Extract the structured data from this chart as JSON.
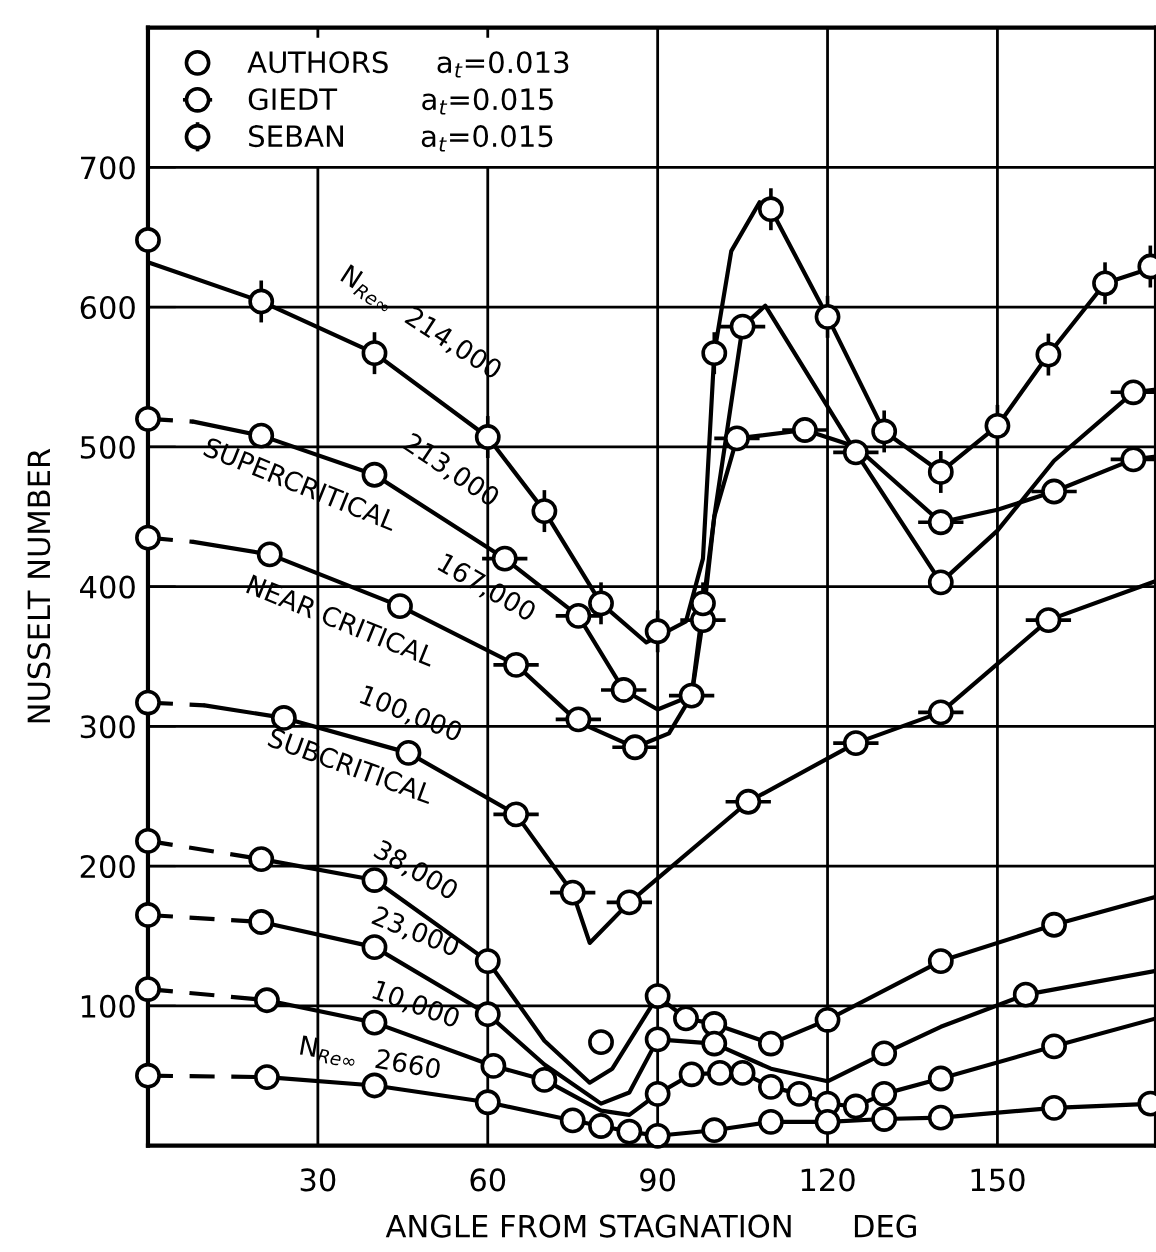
{
  "chart_data": {
    "type": "line",
    "xlabel": "ANGLE FROM STAGNATION      DEG",
    "ylabel": "NUSSELT NUMBER",
    "xlim": [
      0,
      178
    ],
    "ylim": [
      0,
      800
    ],
    "xticks": [
      30,
      60,
      90,
      120,
      150
    ],
    "yticks": [
      100,
      200,
      300,
      400,
      500,
      600,
      700
    ],
    "grid": true,
    "legend": "top left",
    "tick_labels": "xy",
    "series": [
      {
        "color": "#000000",
        "line_style": "solid",
        "x": [
          0,
          20,
          40,
          60,
          70,
          80,
          88,
          95,
          98,
          100,
          103,
          108,
          110,
          120,
          130,
          140,
          150,
          159,
          169,
          178
        ],
        "values": [
          632,
          604,
          567,
          507,
          454,
          388,
          360,
          375,
          420,
          567,
          640,
          675,
          670,
          593,
          511,
          482,
          515,
          566,
          617,
          629
        ]
      },
      {
        "color": "#000000",
        "line_style": "dashed",
        "x": [
          0,
          8
        ],
        "values": [
          520,
          518
        ]
      },
      {
        "color": "#000000",
        "line_style": "solid",
        "x": [
          8,
          20,
          40,
          63,
          76,
          84,
          90,
          96,
          100,
          105,
          109,
          125,
          140,
          150,
          160,
          174,
          178
        ],
        "values": [
          518,
          508,
          480,
          420,
          379,
          326,
          312,
          322,
          450,
          586,
          601,
          496,
          403,
          440,
          490,
          539,
          541
        ]
      },
      {
        "color": "#000000",
        "line_style": "dashed",
        "x": [
          0,
          8
        ],
        "values": [
          435,
          432
        ]
      },
      {
        "color": "#000000",
        "line_style": "solid",
        "x": [
          8,
          21.5,
          44.5,
          65,
          76,
          86,
          92,
          96,
          98,
          100,
          104,
          116,
          125,
          140,
          150,
          160,
          174,
          178
        ],
        "values": [
          432,
          423,
          386,
          344,
          303,
          285,
          295,
          322,
          376,
          450,
          506,
          512,
          500,
          446,
          455,
          468,
          491,
          493
        ]
      },
      {
        "color": "#000000",
        "line_style": "dashed",
        "x": [
          0,
          10
        ],
        "values": [
          317,
          315
        ]
      },
      {
        "color": "#000000",
        "line_style": "solid",
        "x": [
          10,
          24,
          46,
          65,
          75,
          78,
          85,
          106,
          125,
          140,
          159,
          178
        ],
        "values": [
          315,
          306,
          281,
          237,
          181,
          145,
          174,
          246,
          288,
          310,
          376,
          404
        ]
      },
      {
        "color": "#000000",
        "line_style": "dashed",
        "x": [
          0,
          20
        ],
        "values": [
          218,
          205
        ]
      },
      {
        "color": "#000000",
        "line_style": "solid",
        "x": [
          20,
          40,
          60,
          70,
          78,
          82,
          90,
          95,
          100,
          110,
          120,
          140,
          160,
          178
        ],
        "values": [
          205,
          190,
          132,
          75,
          45,
          55,
          107,
          91,
          87,
          73,
          90,
          132,
          158,
          178
        ]
      },
      {
        "color": "#000000",
        "line_style": "dashed",
        "x": [
          0,
          20
        ],
        "values": [
          165,
          160
        ]
      },
      {
        "color": "#000000",
        "line_style": "solid",
        "x": [
          20,
          40,
          60,
          70,
          80,
          85,
          90,
          100,
          110,
          120,
          130,
          140,
          155,
          178
        ],
        "values": [
          160,
          142,
          94,
          58,
          30,
          38,
          76,
          73,
          55,
          46,
          66,
          85,
          108,
          125
        ]
      },
      {
        "color": "#000000",
        "line_style": "dashed",
        "x": [
          0,
          21
        ],
        "values": [
          112,
          104
        ]
      },
      {
        "color": "#000000",
        "line_style": "solid",
        "x": [
          21,
          40,
          61,
          70,
          80,
          85,
          90,
          96,
          101,
          105,
          110,
          115,
          120,
          125,
          130,
          140,
          160,
          178
        ],
        "values": [
          104,
          88,
          57,
          47,
          25,
          22,
          37,
          51,
          52,
          52,
          42,
          37,
          30,
          28,
          37,
          48,
          71,
          91
        ]
      },
      {
        "color": "#000000",
        "line_style": "dashed",
        "x": [
          0,
          21
        ],
        "values": [
          50,
          49
        ]
      },
      {
        "color": "#000000",
        "line_style": "solid",
        "x": [
          21,
          40,
          60,
          75,
          80,
          85,
          90,
          100,
          110,
          120,
          130,
          140,
          160,
          178
        ],
        "values": [
          49,
          43,
          31,
          18,
          14,
          10,
          7,
          11,
          17,
          17,
          19,
          20,
          27,
          30
        ]
      },
      {
        "type": "scatter",
        "name": "AUTHORS     a$_{t}$=0.013",
        "color": "#000000",
        "marker": "circle",
        "x": [
          0,
          0,
          0,
          0,
          0,
          0,
          0,
          0,
          20,
          40,
          21.5,
          44.5,
          24,
          46,
          140,
          20,
          40,
          60,
          80,
          90,
          95,
          100,
          110,
          120,
          140,
          160,
          20,
          40,
          60,
          90,
          100,
          130,
          155,
          21,
          40,
          61,
          70,
          90,
          96,
          101,
          105,
          110,
          115,
          120,
          125,
          130,
          140,
          160,
          21,
          40,
          60,
          75,
          80,
          85,
          90,
          100,
          110,
          120,
          130,
          140,
          160,
          177
        ],
        "values": [
          648,
          520,
          435,
          317,
          218,
          165,
          112,
          50,
          508,
          480,
          423,
          386,
          306,
          281,
          403,
          205,
          190,
          132,
          74,
          107,
          91,
          87,
          73,
          90,
          132,
          158,
          160,
          142,
          94,
          76,
          73,
          66,
          108,
          104,
          88,
          57,
          47,
          37,
          51,
          52,
          52,
          42,
          37,
          30,
          28,
          37,
          48,
          71,
          49,
          43,
          31,
          18,
          14,
          10,
          7,
          11,
          17,
          17,
          19,
          20,
          27,
          30
        ]
      },
      {
        "type": "scatter",
        "name": "GIEDT         a$_{t}$=0.015",
        "color": "#000000",
        "marker": "circle",
        "x": [
          63,
          76,
          84,
          96,
          98,
          105,
          104,
          116,
          125,
          140,
          160,
          174,
          174,
          65,
          75,
          85,
          106,
          125,
          140,
          159,
          65,
          76,
          86
        ],
        "values": [
          420,
          379,
          326,
          322,
          376,
          586,
          506,
          512,
          496,
          446,
          468,
          491,
          539,
          237,
          181,
          174,
          246,
          288,
          310,
          376,
          344,
          305,
          285
        ],
        "xerrors": [
          4,
          4,
          4,
          4,
          4,
          4,
          4,
          4,
          4,
          4,
          4,
          4,
          4,
          4,
          4,
          4,
          4,
          4,
          4,
          4,
          4,
          4,
          4
        ]
      },
      {
        "type": "scatter",
        "name": "SEBAN        a$_{t}$=0.015",
        "color": "#000000",
        "marker": "circle",
        "x": [
          20,
          40,
          60,
          70,
          80,
          90,
          98,
          100,
          110,
          120,
          130,
          140,
          150,
          159,
          169,
          177
        ],
        "values": [
          604,
          567,
          507,
          454,
          388,
          368,
          388,
          567,
          670,
          593,
          511,
          482,
          515,
          566,
          617,
          629
        ],
        "errors": [
          15,
          15,
          15,
          15,
          15,
          15,
          15,
          15,
          15,
          15,
          15,
          15,
          15,
          15,
          15,
          15
        ]
      }
    ],
    "annotations": [
      "N$_{Re∞}$  214,000",
      "213,000",
      "SUPERCRITICAL",
      "167,000",
      "NEAR CRITICAL",
      "100,000",
      "SUBCRITICAL",
      "38,000",
      "23,000",
      "10,000",
      "N$_{Re∞}$  2660"
    ]
  }
}
